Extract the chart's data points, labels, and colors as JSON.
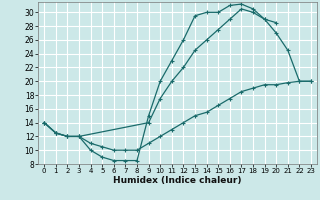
{
  "xlabel": "Humidex (Indice chaleur)",
  "bg_color": "#cce8e8",
  "grid_color": "#ffffff",
  "line_color": "#1a6b6b",
  "xlim": [
    -0.5,
    23.5
  ],
  "ylim": [
    8,
    31.5
  ],
  "xticks": [
    0,
    1,
    2,
    3,
    4,
    5,
    6,
    7,
    8,
    9,
    10,
    11,
    12,
    13,
    14,
    15,
    16,
    17,
    18,
    19,
    20,
    21,
    22,
    23
  ],
  "yticks": [
    8,
    10,
    12,
    14,
    16,
    18,
    20,
    22,
    24,
    26,
    28,
    30
  ],
  "line1_x": [
    0,
    1,
    2,
    3,
    4,
    5,
    6,
    7,
    8,
    9,
    10,
    11,
    12,
    13,
    14,
    15,
    16,
    17,
    18,
    19,
    20
  ],
  "line1_y": [
    14,
    12.5,
    12,
    12,
    10,
    9,
    8.5,
    8.5,
    8.5,
    15,
    20,
    23,
    26,
    29.5,
    30,
    30,
    31,
    31.2,
    30.5,
    29,
    28.5
  ],
  "line2_x": [
    0,
    1,
    2,
    3,
    9,
    10,
    11,
    12,
    13,
    14,
    15,
    16,
    17,
    18,
    19,
    20,
    21,
    22,
    23
  ],
  "line2_y": [
    14,
    12.5,
    12,
    12,
    14,
    17.5,
    20,
    22,
    24.5,
    26,
    27.5,
    29,
    30.5,
    30,
    29,
    27,
    24.5,
    20,
    20
  ],
  "line3_x": [
    0,
    1,
    2,
    3,
    4,
    5,
    6,
    7,
    8,
    9,
    10,
    11,
    12,
    13,
    14,
    15,
    16,
    17,
    18,
    19,
    20,
    21,
    22,
    23
  ],
  "line3_y": [
    14,
    12.5,
    12,
    12,
    11,
    10.5,
    10,
    10,
    10,
    11,
    12,
    13,
    14,
    15,
    15.5,
    16.5,
    17.5,
    18.5,
    19,
    19.5,
    19.5,
    19.8,
    20,
    20
  ]
}
